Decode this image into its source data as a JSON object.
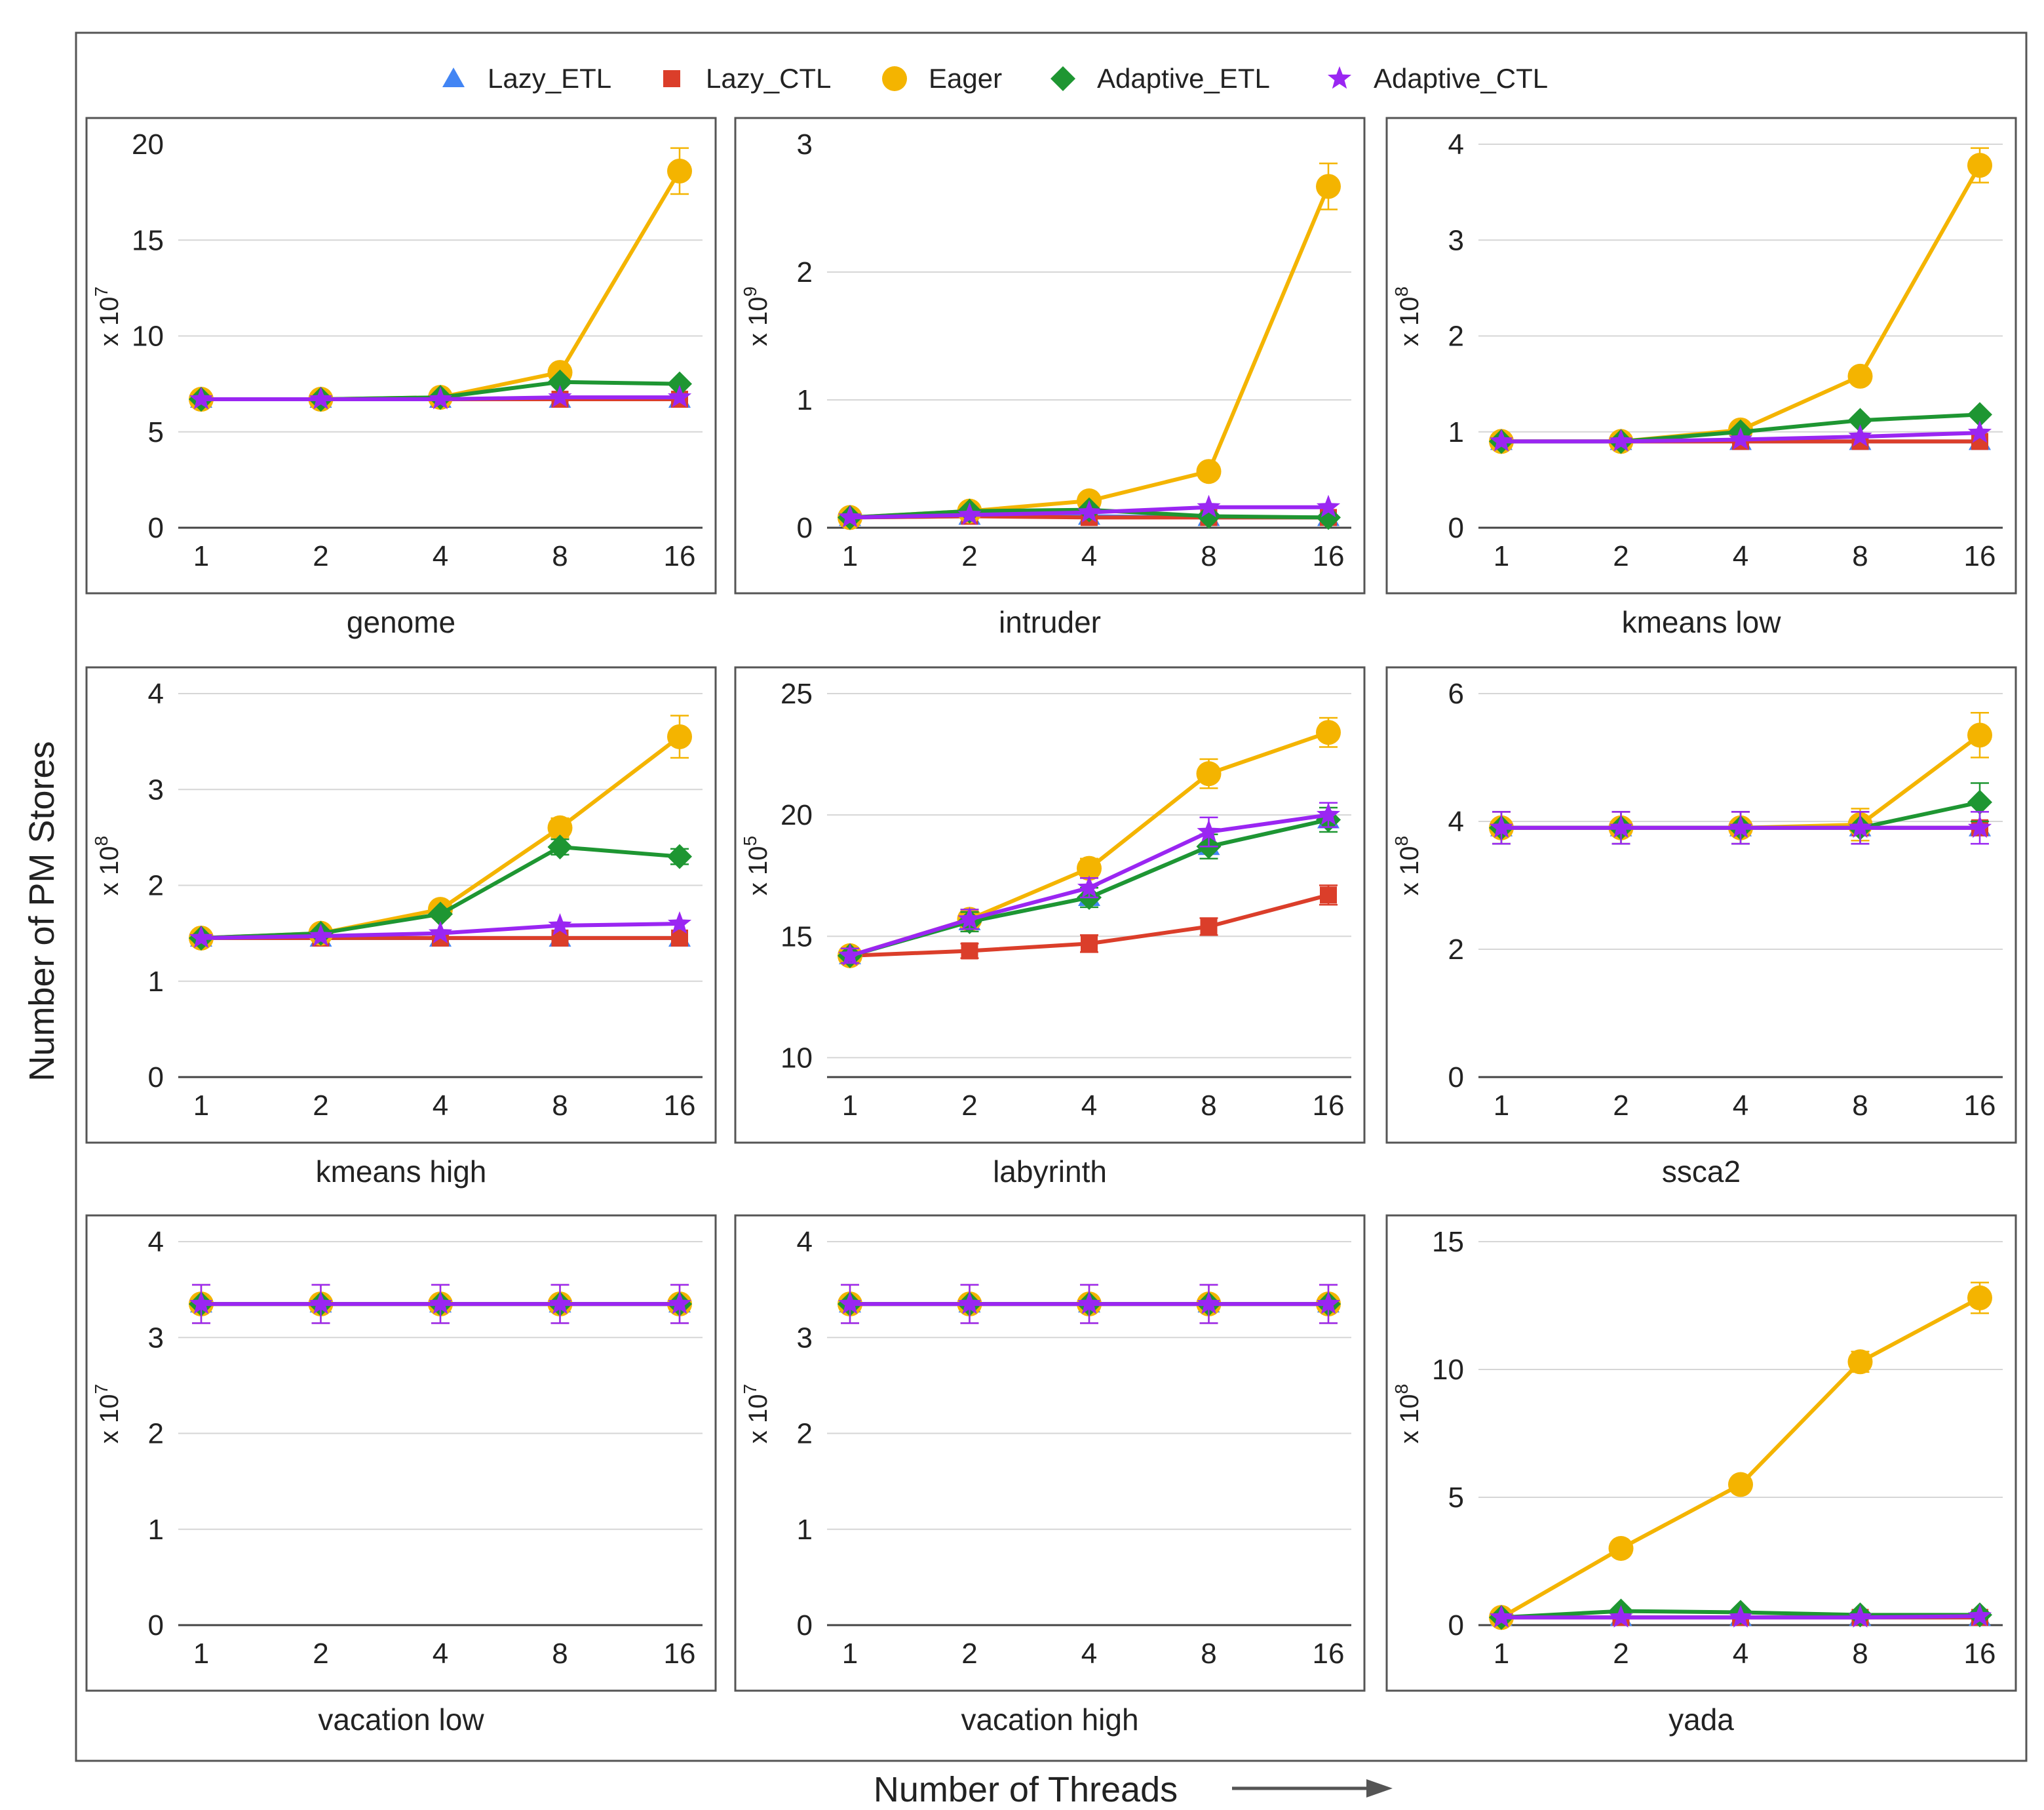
{
  "figure": {
    "ylabel": "Number of PM Stores",
    "xlabel": "Number of Threads",
    "xlabel_arrow": "arrow-right-icon"
  },
  "legend": [
    {
      "name": "Lazy_ETL",
      "color": "#4285f4",
      "marker": "triangle"
    },
    {
      "name": "Lazy_CTL",
      "color": "#db3e2a",
      "marker": "square"
    },
    {
      "name": "Eager",
      "color": "#f4b400",
      "marker": "circle"
    },
    {
      "name": "Adaptive_ETL",
      "color": "#1e9632",
      "marker": "diamond"
    },
    {
      "name": "Adaptive_CTL",
      "color": "#9a26f2",
      "marker": "star"
    }
  ],
  "chart_data": [
    {
      "type": "line",
      "title": "genome",
      "categories": [
        "1",
        "2",
        "4",
        "8",
        "16"
      ],
      "xlabel": "Number of Threads",
      "ylabel": "Number of PM Stores",
      "scale_label": "x 10",
      "scale_exp": "7",
      "ylim": [
        0,
        20
      ],
      "yticks": [
        0,
        5,
        10,
        15,
        20
      ],
      "gridlines": [
        5,
        10,
        15
      ],
      "series": [
        {
          "name": "Lazy_ETL",
          "values": [
            6.7,
            6.7,
            6.7,
            6.7,
            6.7
          ]
        },
        {
          "name": "Lazy_CTL",
          "values": [
            6.7,
            6.7,
            6.7,
            6.7,
            6.7
          ]
        },
        {
          "name": "Eager",
          "values": [
            6.7,
            6.7,
            6.8,
            8.1,
            18.6
          ],
          "err": [
            0,
            0,
            0,
            0.3,
            1.2
          ]
        },
        {
          "name": "Adaptive_ETL",
          "values": [
            6.7,
            6.7,
            6.8,
            7.6,
            7.5
          ]
        },
        {
          "name": "Adaptive_CTL",
          "values": [
            6.7,
            6.7,
            6.7,
            6.8,
            6.8
          ]
        }
      ]
    },
    {
      "type": "line",
      "title": "intruder",
      "categories": [
        "1",
        "2",
        "4",
        "8",
        "16"
      ],
      "xlabel": "Number of Threads",
      "ylabel": "Number of PM Stores",
      "scale_label": "x 10",
      "scale_exp": "9",
      "ylim": [
        0,
        3
      ],
      "yticks": [
        0,
        1,
        2,
        3
      ],
      "gridlines": [
        1,
        2
      ],
      "series": [
        {
          "name": "Lazy_ETL",
          "values": [
            0.08,
            0.09,
            0.09,
            0.08,
            0.08
          ]
        },
        {
          "name": "Lazy_CTL",
          "values": [
            0.08,
            0.09,
            0.08,
            0.08,
            0.08
          ]
        },
        {
          "name": "Eager",
          "values": [
            0.08,
            0.13,
            0.21,
            0.44,
            2.67
          ],
          "err": [
            0,
            0,
            0.03,
            0.05,
            0.18
          ]
        },
        {
          "name": "Adaptive_ETL",
          "values": [
            0.08,
            0.13,
            0.14,
            0.09,
            0.08
          ]
        },
        {
          "name": "Adaptive_CTL",
          "values": [
            0.08,
            0.1,
            0.12,
            0.16,
            0.16
          ]
        }
      ]
    },
    {
      "type": "line",
      "title": "kmeans low",
      "categories": [
        "1",
        "2",
        "4",
        "8",
        "16"
      ],
      "xlabel": "Number of Threads",
      "ylabel": "Number of PM Stores",
      "scale_label": "x 10",
      "scale_exp": "8",
      "ylim": [
        0,
        4
      ],
      "yticks": [
        0,
        1,
        2,
        3,
        4
      ],
      "gridlines": [
        1,
        2,
        3,
        4
      ],
      "series": [
        {
          "name": "Lazy_ETL",
          "values": [
            0.9,
            0.9,
            0.9,
            0.9,
            0.9
          ]
        },
        {
          "name": "Lazy_CTL",
          "values": [
            0.9,
            0.9,
            0.9,
            0.9,
            0.9
          ]
        },
        {
          "name": "Eager",
          "values": [
            0.9,
            0.9,
            1.02,
            1.58,
            3.78
          ],
          "err": [
            0,
            0,
            0,
            0,
            0.18
          ]
        },
        {
          "name": "Adaptive_ETL",
          "values": [
            0.9,
            0.9,
            1.0,
            1.12,
            1.18
          ]
        },
        {
          "name": "Adaptive_CTL",
          "values": [
            0.9,
            0.9,
            0.92,
            0.95,
            0.99
          ]
        }
      ]
    },
    {
      "type": "line",
      "title": "kmeans high",
      "categories": [
        "1",
        "2",
        "4",
        "8",
        "16"
      ],
      "xlabel": "Number of Threads",
      "ylabel": "Number of PM Stores",
      "scale_label": "x 10",
      "scale_exp": "8",
      "ylim": [
        0,
        4
      ],
      "yticks": [
        0,
        1,
        2,
        3,
        4
      ],
      "gridlines": [
        1,
        2,
        3,
        4
      ],
      "series": [
        {
          "name": "Lazy_ETL",
          "values": [
            1.45,
            1.45,
            1.45,
            1.45,
            1.45
          ]
        },
        {
          "name": "Lazy_CTL",
          "values": [
            1.45,
            1.45,
            1.45,
            1.45,
            1.45
          ]
        },
        {
          "name": "Eager",
          "values": [
            1.45,
            1.5,
            1.75,
            2.6,
            3.55
          ],
          "err": [
            0,
            0,
            0,
            0.1,
            0.22
          ]
        },
        {
          "name": "Adaptive_ETL",
          "values": [
            1.45,
            1.5,
            1.7,
            2.4,
            2.3
          ],
          "err": [
            0,
            0,
            0,
            0.08,
            0.08
          ]
        },
        {
          "name": "Adaptive_CTL",
          "values": [
            1.45,
            1.47,
            1.5,
            1.58,
            1.6
          ]
        }
      ]
    },
    {
      "type": "line",
      "title": "labyrinth",
      "categories": [
        "1",
        "2",
        "4",
        "8",
        "16"
      ],
      "xlabel": "Number of Threads",
      "ylabel": "Number of PM Stores",
      "scale_label": "x 10",
      "scale_exp": "5",
      "ylim": [
        9.2,
        25
      ],
      "yticks": [
        10,
        15,
        20,
        25
      ],
      "gridlines": [
        10,
        15,
        20,
        25
      ],
      "series": [
        {
          "name": "Lazy_ETL",
          "values": [
            14.2,
            15.6,
            16.6,
            18.7,
            19.8
          ]
        },
        {
          "name": "Lazy_CTL",
          "values": [
            14.2,
            14.4,
            14.7,
            15.4,
            16.7
          ],
          "err": [
            0.3,
            0.3,
            0.35,
            0.35,
            0.4
          ]
        },
        {
          "name": "Eager",
          "values": [
            14.2,
            15.7,
            17.8,
            21.7,
            23.4
          ],
          "err": [
            0.3,
            0.4,
            0.4,
            0.6,
            0.6
          ]
        },
        {
          "name": "Adaptive_ETL",
          "values": [
            14.2,
            15.6,
            16.6,
            18.7,
            19.8
          ],
          "err": [
            0.3,
            0.4,
            0.4,
            0.5,
            0.5
          ]
        },
        {
          "name": "Adaptive_CTL",
          "values": [
            14.2,
            15.7,
            17.0,
            19.3,
            20.0
          ],
          "err": [
            0.3,
            0.4,
            0.4,
            0.6,
            0.5
          ]
        }
      ]
    },
    {
      "type": "line",
      "title": "ssca2",
      "categories": [
        "1",
        "2",
        "4",
        "8",
        "16"
      ],
      "xlabel": "Number of Threads",
      "ylabel": "Number of PM Stores",
      "scale_label": "x 10",
      "scale_exp": "8",
      "ylim": [
        0,
        6
      ],
      "yticks": [
        0,
        2,
        4,
        6
      ],
      "gridlines": [
        2,
        4,
        6
      ],
      "series": [
        {
          "name": "Lazy_ETL",
          "values": [
            3.9,
            3.9,
            3.9,
            3.9,
            3.9
          ]
        },
        {
          "name": "Lazy_CTL",
          "values": [
            3.9,
            3.9,
            3.9,
            3.9,
            3.9
          ]
        },
        {
          "name": "Eager",
          "values": [
            3.9,
            3.9,
            3.9,
            3.95,
            5.35
          ],
          "err": [
            0.25,
            0.25,
            0.25,
            0.25,
            0.35
          ]
        },
        {
          "name": "Adaptive_ETL",
          "values": [
            3.9,
            3.9,
            3.9,
            3.9,
            4.3
          ],
          "err": [
            0.25,
            0.25,
            0.25,
            0.25,
            0.3
          ]
        },
        {
          "name": "Adaptive_CTL",
          "values": [
            3.9,
            3.9,
            3.9,
            3.9,
            3.9
          ],
          "err": [
            0.25,
            0.25,
            0.25,
            0.25,
            0.25
          ]
        }
      ]
    },
    {
      "type": "line",
      "title": "vacation low",
      "categories": [
        "1",
        "2",
        "4",
        "8",
        "16"
      ],
      "xlabel": "Number of Threads",
      "ylabel": "Number of PM Stores",
      "scale_label": "x 10",
      "scale_exp": "7",
      "ylim": [
        0,
        4
      ],
      "yticks": [
        0,
        1,
        2,
        3,
        4
      ],
      "gridlines": [
        1,
        2,
        3,
        4
      ],
      "series": [
        {
          "name": "Lazy_ETL",
          "values": [
            3.35,
            3.35,
            3.35,
            3.35,
            3.35
          ]
        },
        {
          "name": "Lazy_CTL",
          "values": [
            3.35,
            3.35,
            3.35,
            3.35,
            3.35
          ]
        },
        {
          "name": "Eager",
          "values": [
            3.35,
            3.35,
            3.35,
            3.35,
            3.35
          ],
          "err": [
            0.2,
            0.2,
            0.2,
            0.2,
            0.2
          ]
        },
        {
          "name": "Adaptive_ETL",
          "values": [
            3.35,
            3.35,
            3.35,
            3.35,
            3.35
          ]
        },
        {
          "name": "Adaptive_CTL",
          "values": [
            3.35,
            3.35,
            3.35,
            3.35,
            3.35
          ],
          "err": [
            0.2,
            0.2,
            0.2,
            0.2,
            0.2
          ]
        }
      ]
    },
    {
      "type": "line",
      "title": "vacation high",
      "categories": [
        "1",
        "2",
        "4",
        "8",
        "16"
      ],
      "xlabel": "Number of Threads",
      "ylabel": "Number of PM Stores",
      "scale_label": "x 10",
      "scale_exp": "7",
      "ylim": [
        0,
        4
      ],
      "yticks": [
        0,
        1,
        2,
        3,
        4
      ],
      "gridlines": [
        1,
        2,
        3,
        4
      ],
      "series": [
        {
          "name": "Lazy_ETL",
          "values": [
            3.35,
            3.35,
            3.35,
            3.35,
            3.35
          ]
        },
        {
          "name": "Lazy_CTL",
          "values": [
            3.35,
            3.35,
            3.35,
            3.35,
            3.35
          ]
        },
        {
          "name": "Eager",
          "values": [
            3.35,
            3.35,
            3.35,
            3.35,
            3.35
          ],
          "err": [
            0.2,
            0.2,
            0.2,
            0.2,
            0.2
          ]
        },
        {
          "name": "Adaptive_ETL",
          "values": [
            3.35,
            3.35,
            3.35,
            3.35,
            3.35
          ]
        },
        {
          "name": "Adaptive_CTL",
          "values": [
            3.35,
            3.35,
            3.35,
            3.35,
            3.35
          ],
          "err": [
            0.2,
            0.2,
            0.2,
            0.2,
            0.2
          ]
        }
      ]
    },
    {
      "type": "line",
      "title": "yada",
      "categories": [
        "1",
        "2",
        "4",
        "8",
        "16"
      ],
      "xlabel": "Number of Threads",
      "ylabel": "Number of PM Stores",
      "scale_label": "x 10",
      "scale_exp": "8",
      "ylim": [
        0,
        15
      ],
      "yticks": [
        0,
        5,
        10,
        15
      ],
      "gridlines": [
        5,
        10,
        15
      ],
      "series": [
        {
          "name": "Lazy_ETL",
          "values": [
            0.3,
            0.3,
            0.3,
            0.3,
            0.3
          ]
        },
        {
          "name": "Lazy_CTL",
          "values": [
            0.3,
            0.3,
            0.3,
            0.3,
            0.3
          ]
        },
        {
          "name": "Eager",
          "values": [
            0.3,
            3.0,
            5.5,
            10.3,
            12.8
          ],
          "err": [
            0,
            0,
            0,
            0.4,
            0.6
          ]
        },
        {
          "name": "Adaptive_ETL",
          "values": [
            0.3,
            0.55,
            0.5,
            0.4,
            0.4
          ]
        },
        {
          "name": "Adaptive_CTL",
          "values": [
            0.3,
            0.3,
            0.3,
            0.3,
            0.35
          ]
        }
      ]
    }
  ]
}
